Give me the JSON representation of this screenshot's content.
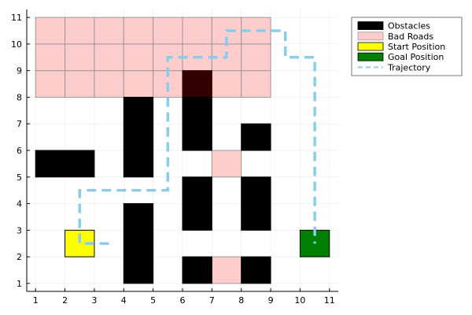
{
  "chart_data": {
    "type": "grid-map",
    "xlim": [
      0.7,
      11.3
    ],
    "ylim": [
      0.7,
      11.3
    ],
    "xticks": [
      1,
      2,
      3,
      4,
      5,
      6,
      7,
      8,
      9,
      10,
      11
    ],
    "yticks": [
      1,
      2,
      3,
      4,
      5,
      6,
      7,
      8,
      9,
      10,
      11
    ],
    "grid": true,
    "legend_position": "outside-top-right",
    "colors": {
      "obstacle": "#000000",
      "bad_road": "#ffcccc",
      "bad_road_edge": "#999999",
      "overlap": "#330000",
      "start": "#ffff00",
      "goal": "#008000",
      "trajectory": "#87ceeb"
    },
    "legend": [
      {
        "label": "Obstacles",
        "kind": "obstacle"
      },
      {
        "label": "Bad Roads",
        "kind": "bad_road"
      },
      {
        "label": "Start Position",
        "kind": "start"
      },
      {
        "label": "Goal Position",
        "kind": "goal"
      },
      {
        "label": "Trajectory",
        "kind": "trajectory"
      }
    ],
    "bad_roads": [
      {
        "x": [
          1,
          9
        ],
        "y": [
          8,
          11
        ]
      },
      {
        "x": [
          7,
          8
        ],
        "y": [
          5,
          6
        ]
      },
      {
        "x": [
          7,
          8
        ],
        "y": [
          1,
          2
        ]
      }
    ],
    "obstacles": [
      {
        "x": [
          6,
          7
        ],
        "y": [
          8,
          9
        ]
      },
      {
        "x": [
          4,
          5
        ],
        "y": [
          5,
          8
        ]
      },
      {
        "x": [
          6,
          7
        ],
        "y": [
          6,
          8
        ]
      },
      {
        "x": [
          8,
          9
        ],
        "y": [
          6,
          7
        ]
      },
      {
        "x": [
          1,
          3
        ],
        "y": [
          5,
          6
        ]
      },
      {
        "x": [
          6,
          7
        ],
        "y": [
          3,
          5
        ]
      },
      {
        "x": [
          8,
          9
        ],
        "y": [
          3,
          5
        ]
      },
      {
        "x": [
          4,
          5
        ],
        "y": [
          1,
          4
        ]
      },
      {
        "x": [
          6,
          7
        ],
        "y": [
          1,
          2
        ]
      },
      {
        "x": [
          8,
          9
        ],
        "y": [
          1,
          2
        ]
      }
    ],
    "start": {
      "x": [
        2,
        3
      ],
      "y": [
        2,
        3
      ]
    },
    "goal": {
      "x": [
        10,
        11
      ],
      "y": [
        2,
        3
      ]
    },
    "trajectory": {
      "x": [
        3.5,
        2.5,
        2.5,
        5.5,
        5.5,
        7.5,
        7.5,
        9.5,
        9.5,
        10.5,
        10.5
      ],
      "y": [
        2.5,
        2.5,
        4.5,
        4.5,
        9.5,
        9.5,
        10.5,
        10.5,
        9.5,
        9.5,
        2.5
      ]
    }
  }
}
